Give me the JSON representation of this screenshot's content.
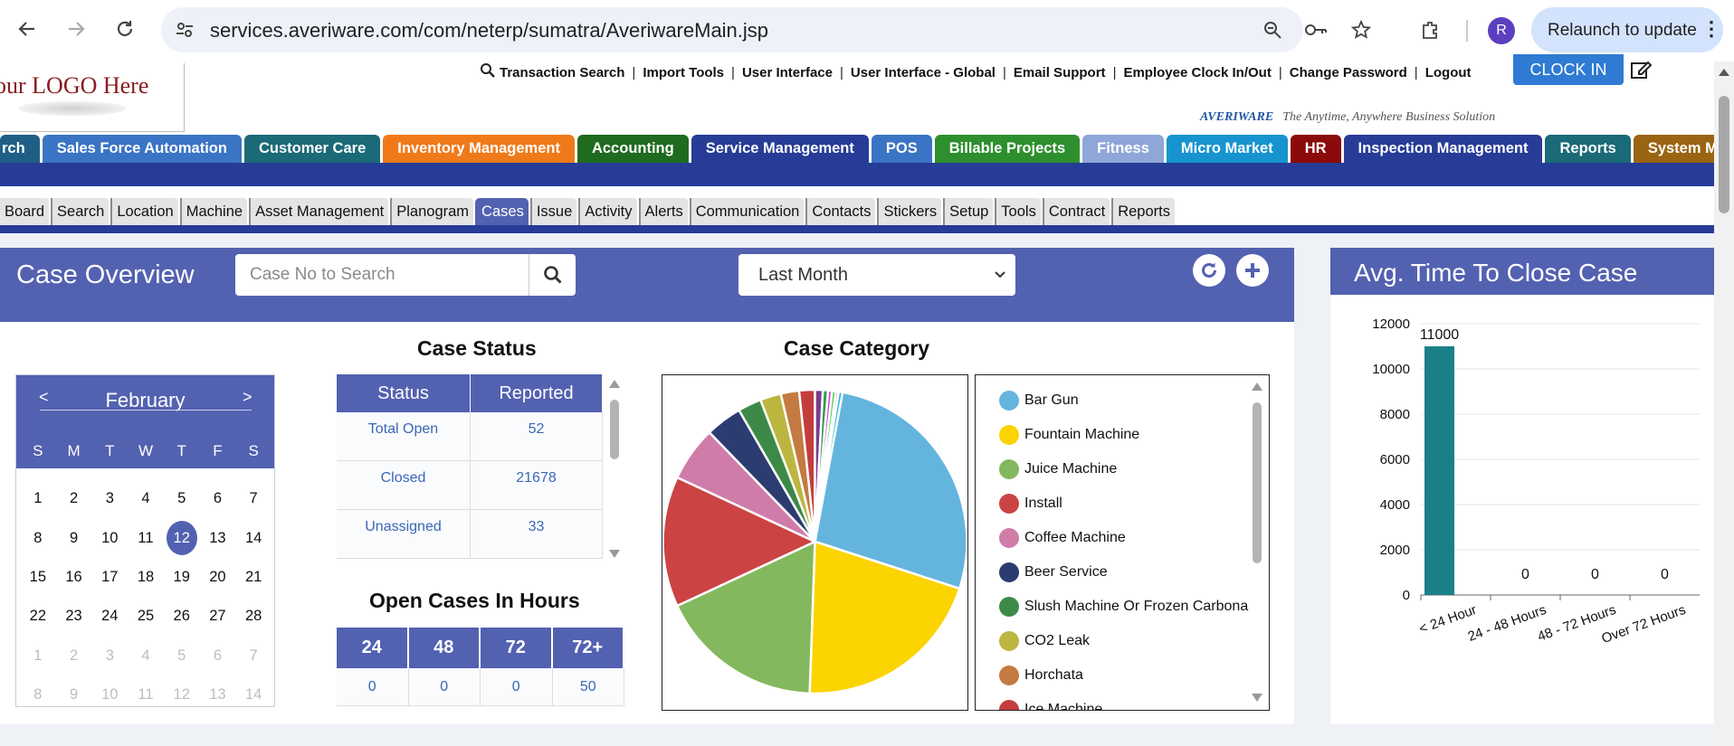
{
  "browser": {
    "url": "services.averiware.com/com/neterp/sumatra/AveriwareMain.jsp",
    "profile_initial": "R",
    "relaunch_label": "Relaunch to update"
  },
  "header": {
    "logo_text": "our LOGO Here",
    "links": [
      "Transaction Search",
      "Import Tools",
      "User Interface",
      "User Interface - Global",
      "Email Support",
      "Employee Clock In/Out",
      "Change Password",
      "Logout"
    ],
    "clock_in_label": "CLOCK IN",
    "brand": "AVERIWARE",
    "tagline": "The Anytime, Anywhere Business Solution"
  },
  "main_nav": [
    {
      "label": "rch",
      "color": "#1f5f86"
    },
    {
      "label": "Sales Force Automation",
      "color": "#3a74c4"
    },
    {
      "label": "Customer Care",
      "color": "#1b6a78"
    },
    {
      "label": "Inventory Management",
      "color": "#f07a1a"
    },
    {
      "label": "Accounting",
      "color": "#1f6b1f"
    },
    {
      "label": "Service Management",
      "color": "#263c96"
    },
    {
      "label": "POS",
      "color": "#3a74c4"
    },
    {
      "label": "Billable Projects",
      "color": "#2e8f2e"
    },
    {
      "label": "Fitness",
      "color": "#8fa6d8"
    },
    {
      "label": "Micro Market",
      "color": "#1794cf"
    },
    {
      "label": "HR",
      "color": "#8b0a0a"
    },
    {
      "label": "Inspection Management",
      "color": "#263c96"
    },
    {
      "label": "Reports",
      "color": "#1b6a78"
    },
    {
      "label": "System Manager",
      "color": "#9a6413"
    }
  ],
  "sub_nav": {
    "items": [
      "Board",
      "Search",
      "Location",
      "Machine",
      "Asset Management",
      "Planogram",
      "Cases",
      "Issue",
      "Activity",
      "Alerts",
      "Communication",
      "Contacts",
      "Stickers",
      "Setup",
      "Tools",
      "Contract",
      "Reports"
    ],
    "active": "Cases"
  },
  "overview": {
    "title": "Case Overview",
    "search_placeholder": "Case No to Search",
    "period_selected": "Last Month",
    "refresh_icon": "refresh-icon",
    "add_icon": "plus-icon"
  },
  "calendar": {
    "prev": "<",
    "next": ">",
    "month": "February",
    "dows": [
      "S",
      "M",
      "T",
      "W",
      "T",
      "F",
      "S"
    ],
    "days": [
      [
        "1",
        "2",
        "3",
        "4",
        "5",
        "6",
        "7"
      ],
      [
        "8",
        "9",
        "10",
        "11",
        "12",
        "13",
        "14"
      ],
      [
        "15",
        "16",
        "17",
        "18",
        "19",
        "20",
        "21"
      ],
      [
        "22",
        "23",
        "24",
        "25",
        "26",
        "27",
        "28"
      ],
      [
        "1",
        "2",
        "3",
        "4",
        "5",
        "6",
        "7"
      ],
      [
        "8",
        "9",
        "10",
        "11",
        "12",
        "13",
        "14"
      ]
    ],
    "today": "12"
  },
  "case_status": {
    "title": "Case Status",
    "headers": [
      "Status",
      "Reported"
    ],
    "rows": [
      [
        "Total Open",
        "52"
      ],
      [
        "Closed",
        "21678"
      ],
      [
        "Unassigned",
        "33"
      ]
    ]
  },
  "open_cases": {
    "title": "Open Cases In Hours",
    "headers": [
      "24",
      "48",
      "72",
      "72+"
    ],
    "values": [
      "0",
      "0",
      "0",
      "50"
    ]
  },
  "case_category": {
    "title": "Case Category",
    "legend": [
      {
        "label": "Bar Gun",
        "color": "#64b5de"
      },
      {
        "label": "Fountain Machine",
        "color": "#fcd402"
      },
      {
        "label": "Juice Machine",
        "color": "#84b85e"
      },
      {
        "label": "Install",
        "color": "#cc4343"
      },
      {
        "label": "Coffee Machine",
        "color": "#d07ca9"
      },
      {
        "label": "Beer Service",
        "color": "#2c3c70"
      },
      {
        "label": "Slush Machine Or Frozen Carbona",
        "color": "#3d8a48"
      },
      {
        "label": "CO2 Leak",
        "color": "#bcb640"
      },
      {
        "label": "Horchata",
        "color": "#c47a40"
      },
      {
        "label": "Ice Machine",
        "color": "#c43d3d"
      }
    ]
  },
  "chart_data": {
    "type": "bar",
    "title": "Avg. Time To Close Case",
    "categories": [
      "< 24 Hour",
      "24 - 48 Hours",
      "48 - 72 Hours",
      "Over 72 Hours"
    ],
    "values": [
      11000,
      0,
      0,
      0
    ],
    "data_labels": [
      "11000",
      "0",
      "0",
      "0"
    ],
    "ylim": [
      0,
      12000
    ],
    "yticks": [
      0,
      2000,
      4000,
      6000,
      8000,
      10000,
      12000
    ],
    "bar_color": "#1b7f88",
    "grid": true
  }
}
